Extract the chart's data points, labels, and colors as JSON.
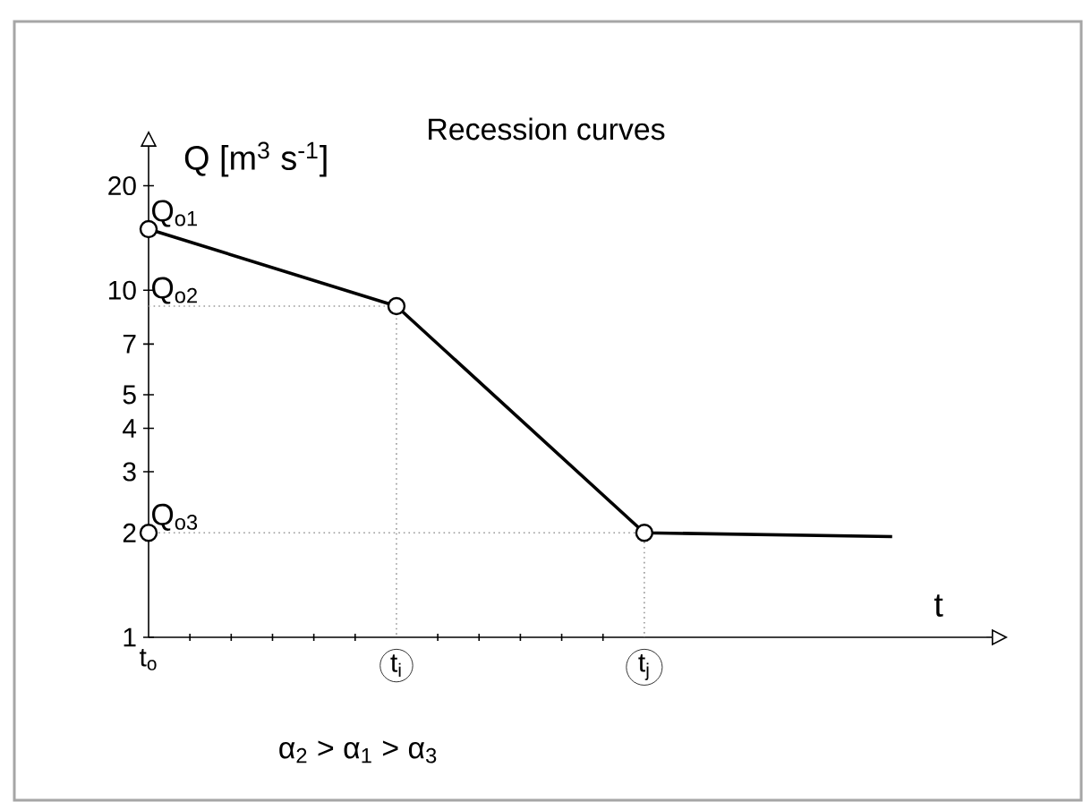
{
  "chart_data": {
    "type": "line",
    "title": "Recession curves",
    "ylabel": "Q [m$^{3}$ s$^{-1}$]",
    "xlabel": "t",
    "categories": [
      "t$_{o}$",
      "t$_{i}$",
      "t$_{j}$",
      null
    ],
    "log": "y",
    "ylim": [
      1,
      25
    ],
    "yticks": [
      1,
      2,
      3,
      4,
      5,
      7,
      10,
      20
    ],
    "marker": "circle",
    "series": [
      {
        "color": "#999999",
        "line_style": "dotted",
        "marker": "none",
        "x": [
          "t$_{o}$",
          "t$_{i}$",
          "t$_{i}$"
        ],
        "values": [
          9,
          9,
          1
        ]
      },
      {
        "color": "#999999",
        "line_style": "dotted",
        "marker": "none",
        "x": [
          "t$_{o}$",
          "t$_{j}$",
          "t$_{j}$"
        ],
        "values": [
          2,
          2,
          1
        ]
      },
      {
        "color": "#000000",
        "marker": "none",
        "values": [
          15,
          9,
          2,
          1.95
        ]
      },
      {
        "type": "scatter",
        "color": "#000000",
        "x": [
          "t$_{o}$",
          "t$_{i}$",
          "t$_{j}$",
          "t$_{o}$"
        ],
        "values": [
          15,
          9,
          2,
          2
        ]
      }
    ],
    "annotations": [
      {
        "text": "Q$_{o1}$",
        "x": "t$_{o}$",
        "y": 15
      },
      {
        "text": "Q$_{o2}$",
        "x": "t$_{o}$",
        "y": 9
      },
      {
        "text": "Q$_{o3}$",
        "x": "t$_{o}$",
        "y": 2
      },
      "α$_{2}$ > α$_{1}$ > α$_{3}$"
    ]
  }
}
